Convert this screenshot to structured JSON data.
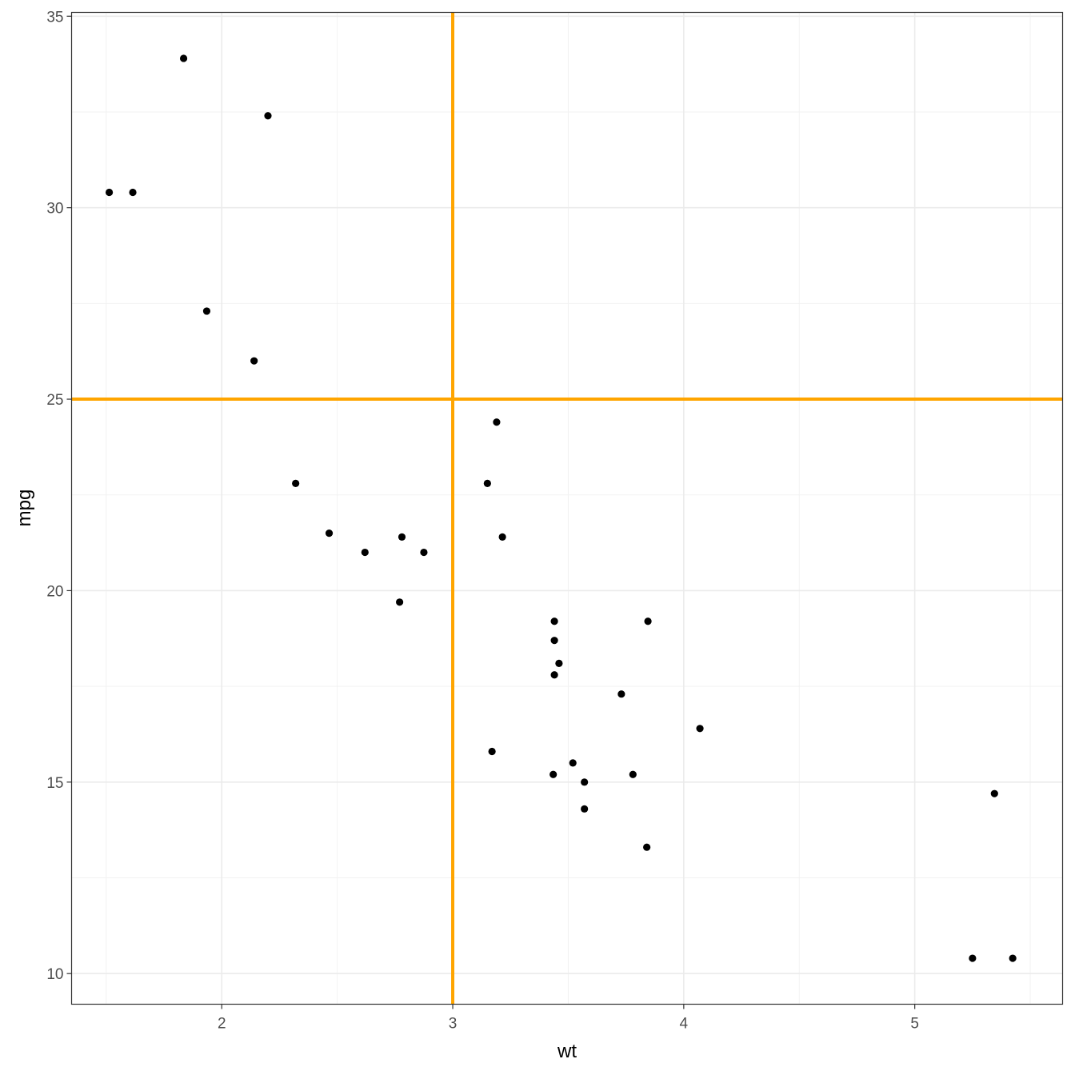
{
  "chart_data": {
    "type": "scatter",
    "title": "",
    "xlabel": "wt",
    "ylabel": "mpg",
    "xlim": [
      1.35,
      5.64
    ],
    "ylim": [
      9.2,
      35.1
    ],
    "x_ticks": [
      2,
      3,
      4,
      5
    ],
    "y_ticks": [
      10,
      15,
      20,
      25,
      30,
      35
    ],
    "x_tick_labels": [
      "2",
      "3",
      "4",
      "5"
    ],
    "y_tick_labels": [
      "10",
      "15",
      "20",
      "25",
      "30",
      "35"
    ],
    "grid": true,
    "point_color": "#000000",
    "reference_lines": [
      {
        "orientation": "vertical",
        "value": 3,
        "color": "#FFA500"
      },
      {
        "orientation": "horizontal",
        "value": 25,
        "color": "#FFA500"
      }
    ],
    "points": [
      {
        "x": 1.513,
        "y": 30.4
      },
      {
        "x": 1.615,
        "y": 30.4
      },
      {
        "x": 1.835,
        "y": 33.9
      },
      {
        "x": 1.935,
        "y": 27.3
      },
      {
        "x": 2.14,
        "y": 26.0
      },
      {
        "x": 2.2,
        "y": 32.4
      },
      {
        "x": 2.32,
        "y": 22.8
      },
      {
        "x": 2.465,
        "y": 21.5
      },
      {
        "x": 2.62,
        "y": 21.0
      },
      {
        "x": 2.77,
        "y": 19.7
      },
      {
        "x": 2.78,
        "y": 21.4
      },
      {
        "x": 2.875,
        "y": 21.0
      },
      {
        "x": 3.15,
        "y": 22.8
      },
      {
        "x": 3.17,
        "y": 15.8
      },
      {
        "x": 3.19,
        "y": 24.4
      },
      {
        "x": 3.215,
        "y": 21.4
      },
      {
        "x": 3.435,
        "y": 15.2
      },
      {
        "x": 3.44,
        "y": 18.7
      },
      {
        "x": 3.44,
        "y": 19.2
      },
      {
        "x": 3.44,
        "y": 17.8
      },
      {
        "x": 3.46,
        "y": 18.1
      },
      {
        "x": 3.52,
        "y": 15.5
      },
      {
        "x": 3.57,
        "y": 15.0
      },
      {
        "x": 3.57,
        "y": 14.3
      },
      {
        "x": 3.73,
        "y": 17.3
      },
      {
        "x": 3.78,
        "y": 15.2
      },
      {
        "x": 3.84,
        "y": 13.3
      },
      {
        "x": 3.845,
        "y": 19.2
      },
      {
        "x": 4.07,
        "y": 16.4
      },
      {
        "x": 5.25,
        "y": 10.4
      },
      {
        "x": 5.345,
        "y": 14.7
      },
      {
        "x": 5.424,
        "y": 10.4
      }
    ]
  }
}
